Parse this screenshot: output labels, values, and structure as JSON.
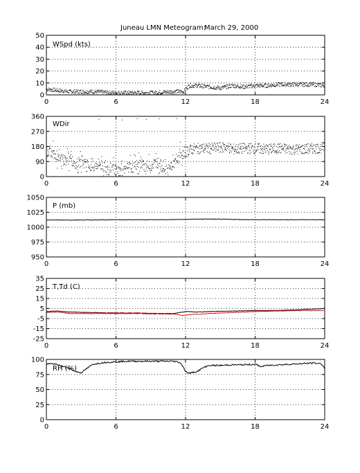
{
  "title": "Juneau LMN Meteogram:",
  "date": "March 29, 2000",
  "chart_data": [
    {
      "type": "scatter",
      "label": "WSpd (kts)",
      "xlim": [
        0,
        24
      ],
      "ylim": [
        0,
        50
      ],
      "xticks": [
        0,
        6,
        12,
        18,
        24
      ],
      "yticks": [
        0,
        10,
        20,
        30,
        40,
        50
      ],
      "grid": true,
      "series": [
        {
          "color": "#000000",
          "style": "dots",
          "x": [
            0,
            1,
            2,
            3,
            4,
            5,
            6,
            7,
            8,
            9,
            10,
            11,
            11.8,
            12.3,
            13,
            14,
            15,
            16,
            17,
            18,
            19,
            20,
            21,
            22,
            23,
            24
          ],
          "y": [
            5,
            4,
            3,
            3,
            3,
            2.5,
            2,
            2,
            2,
            2,
            2.5,
            3,
            3,
            8,
            8,
            7,
            6,
            8,
            7,
            8,
            8,
            9,
            9,
            9,
            9,
            8
          ]
        }
      ]
    },
    {
      "type": "scatter",
      "label": "WDir",
      "xlim": [
        0,
        24
      ],
      "ylim": [
        0,
        360
      ],
      "xticks": [
        0,
        6,
        12,
        18,
        24
      ],
      "yticks": [
        0,
        90,
        180,
        270,
        360
      ],
      "grid": true,
      "series": [
        {
          "color": "#000000",
          "style": "dots",
          "x": [
            0,
            0.5,
            1,
            1.5,
            2,
            2.5,
            3,
            3.5,
            4,
            4.5,
            5,
            5.5,
            6,
            6.5,
            7,
            7.5,
            8,
            8.5,
            9,
            9.5,
            10,
            10.5,
            11,
            11.5,
            12,
            12.5,
            13,
            14,
            15,
            15.5,
            16,
            17,
            18,
            19,
            20,
            21,
            22,
            23,
            24
          ],
          "y": [
            150,
            140,
            120,
            100,
            110,
            80,
            90,
            70,
            60,
            80,
            55,
            40,
            45,
            30,
            60,
            50,
            80,
            60,
            70,
            90,
            60,
            40,
            80,
            120,
            150,
            165,
            170,
            170,
            175,
            180,
            165,
            170,
            170,
            165,
            170,
            165,
            165,
            170,
            175
          ]
        }
      ]
    },
    {
      "type": "line",
      "label": "P (mb)",
      "xlim": [
        0,
        24
      ],
      "ylim": [
        950,
        1050
      ],
      "xticks": [
        0,
        6,
        12,
        18,
        24
      ],
      "yticks": [
        950,
        975,
        1000,
        1025,
        1050
      ],
      "grid": true,
      "series": [
        {
          "color": "#000000",
          "x": [
            0,
            2,
            4,
            6,
            8,
            10,
            12,
            13,
            14,
            16,
            18,
            20,
            22,
            24
          ],
          "y": [
            1012,
            1012,
            1012,
            1012.5,
            1012.5,
            1012.5,
            1013,
            1013.5,
            1013.5,
            1013,
            1012.5,
            1012.5,
            1012.5,
            1012.5
          ]
        }
      ]
    },
    {
      "type": "line",
      "label": "T,Td (C)",
      "xlim": [
        0,
        24
      ],
      "ylim": [
        -25,
        35
      ],
      "xticks": [
        0,
        6,
        12,
        18,
        24
      ],
      "yticks": [
        -25,
        -15,
        -5,
        5,
        15,
        25,
        35
      ],
      "grid": true,
      "series": [
        {
          "color": "#000000",
          "x": [
            0,
            1,
            2,
            4,
            6,
            8,
            10,
            11,
            12,
            13,
            14,
            16,
            18,
            20,
            22,
            24
          ],
          "y": [
            2,
            2.5,
            1.5,
            1,
            0.5,
            0.5,
            0,
            0,
            2,
            1.5,
            2,
            2.5,
            3,
            3,
            4,
            5
          ]
        },
        {
          "color": "#ff0000",
          "x": [
            0,
            1,
            2,
            4,
            6,
            8,
            10,
            11,
            11.8,
            12.5,
            14,
            16,
            18,
            20,
            22,
            24
          ],
          "y": [
            1,
            1.5,
            0,
            0,
            0,
            0,
            -0.5,
            -0.5,
            -2,
            -1,
            0,
            1,
            2,
            2.5,
            3,
            3
          ]
        }
      ]
    },
    {
      "type": "line",
      "label": "RH (%)",
      "xlim": [
        0,
        24
      ],
      "ylim": [
        0,
        100
      ],
      "xticks": [
        0,
        6,
        12,
        18,
        24
      ],
      "yticks": [
        0,
        25,
        50,
        75,
        100
      ],
      "grid": true,
      "series": [
        {
          "color": "#000000",
          "x": [
            0,
            0.5,
            1,
            1.5,
            2,
            2.5,
            3,
            3.5,
            4,
            5,
            6,
            7,
            8,
            9,
            10,
            11,
            11.5,
            11.8,
            12,
            12.3,
            13,
            13.5,
            14,
            15,
            16,
            17,
            18,
            18.5,
            19,
            20,
            21,
            22,
            23,
            23.7,
            24
          ],
          "y": [
            92,
            93,
            91,
            88,
            85,
            80,
            78,
            85,
            92,
            95,
            96,
            97,
            97,
            97,
            97,
            97,
            95,
            88,
            80,
            77,
            80,
            86,
            90,
            90,
            91,
            91,
            92,
            88,
            90,
            91,
            92,
            93,
            94,
            93,
            85
          ]
        }
      ]
    }
  ]
}
